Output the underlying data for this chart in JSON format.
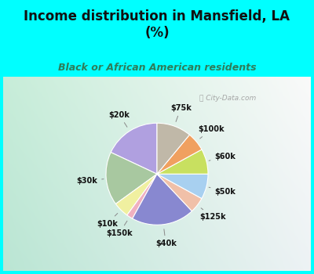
{
  "title": "Income distribution in Mansfield, LA\n(%)",
  "subtitle": "Black or African American residents",
  "title_color": "#111111",
  "subtitle_color": "#2e7d5a",
  "bg_outer": "#00FFFF",
  "labels": [
    "$20k",
    "$30k",
    "$10k",
    "$150k",
    "$40k",
    "$125k",
    "$50k",
    "$60k",
    "$100k",
    "$75k"
  ],
  "values": [
    18,
    17,
    5,
    2,
    20,
    5,
    8,
    8,
    6,
    11
  ],
  "colors": [
    "#b0a0e0",
    "#a8c8a0",
    "#f0f0a0",
    "#f0b0c0",
    "#8888d0",
    "#f0c0a8",
    "#a8d0f0",
    "#c8e060",
    "#f0a060",
    "#c0b8a8"
  ],
  "startangle": 90,
  "watermark": "City-Data.com"
}
